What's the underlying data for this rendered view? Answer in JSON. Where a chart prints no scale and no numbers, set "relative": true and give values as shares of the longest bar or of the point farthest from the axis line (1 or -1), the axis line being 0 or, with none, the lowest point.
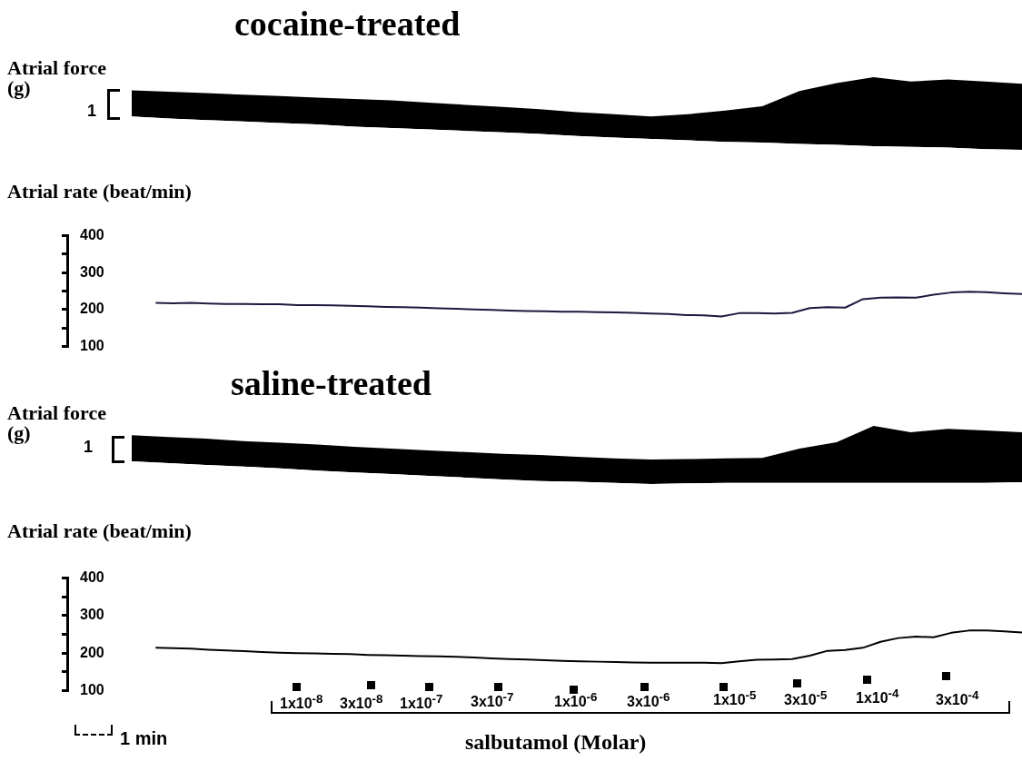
{
  "chart_data": [
    {
      "type": "area",
      "stacked": true,
      "title": "cocaine-treated",
      "ylabel": "Atrial force (g)",
      "relative": true,
      "grid": false,
      "legend": false,
      "annotations": [
        "1"
      ],
      "categories": [
        null,
        null,
        null,
        null,
        null,
        null,
        null,
        null,
        null,
        null,
        null,
        null,
        null,
        null,
        null,
        null,
        null,
        null,
        null,
        null,
        null,
        null,
        null,
        null,
        null
      ],
      "series": [
        {
          "color": "#ffffff",
          "values": [
            0.46,
            0.43,
            0.41,
            0.39,
            0.37,
            0.35,
            0.32,
            0.3,
            0.28,
            0.26,
            0.24,
            0.22,
            0.19,
            0.17,
            0.15,
            0.13,
            0.11,
            0.1,
            0.08,
            0.07,
            0.05,
            0.04,
            0.03,
            0.01,
            0
          ]
        },
        {
          "color": "#000000",
          "values": [
            0.36,
            0.37,
            0.37,
            0.37,
            0.37,
            0.37,
            0.38,
            0.38,
            0.37,
            0.36,
            0.35,
            0.34,
            0.33,
            0.32,
            0.31,
            0.36,
            0.43,
            0.5,
            0.73,
            0.85,
            0.95,
            0.9,
            0.94,
            0.93,
            0.91
          ]
        }
      ]
    },
    {
      "type": "line",
      "ylabel": "Atrial rate (beat/min)",
      "grid": false,
      "legend": false,
      "marker": "none",
      "tick_labels": "y",
      "categories": [
        null,
        null,
        null,
        null,
        null,
        null,
        null,
        null,
        null,
        null,
        null,
        null,
        null,
        null,
        null,
        null,
        null,
        null,
        null,
        null,
        null,
        null,
        null,
        null,
        null,
        null,
        null,
        null,
        null,
        null,
        null,
        null,
        null,
        null,
        null,
        null,
        null,
        null,
        null,
        null,
        null,
        null,
        null,
        null,
        null,
        null,
        null,
        null,
        null,
        null,
        null,
        null,
        null,
        null,
        null
      ],
      "ylim": [
        100,
        400
      ],
      "yticks": [
        100,
        {
          "value": 150,
          "label": null
        },
        200,
        {
          "value": 250,
          "label": null
        },
        300,
        {
          "value": 350,
          "label": null
        },
        400
      ],
      "series": [
        {
          "color": "#1a1a40",
          "values": [
            null,
            null,
            null,
            null,
            null,
            218,
            217,
            218,
            216,
            215,
            215,
            214,
            214,
            212,
            212,
            211,
            210,
            209,
            207,
            206,
            205,
            203,
            202,
            200,
            199,
            197,
            196,
            195,
            194,
            194,
            193,
            192,
            191,
            189,
            188,
            185,
            184,
            181,
            190,
            190,
            189,
            191,
            204,
            206,
            205,
            228,
            232,
            233,
            232,
            240,
            246,
            248,
            247,
            244,
            242
          ]
        }
      ]
    },
    {
      "type": "area",
      "stacked": true,
      "title": "saline-treated",
      "ylabel": "Atrial force (g)",
      "relative": true,
      "grid": false,
      "legend": false,
      "annotations": [
        "1"
      ],
      "categories": [
        null,
        null,
        null,
        null,
        null,
        null,
        null,
        null,
        null,
        null,
        null,
        null,
        null,
        null,
        null,
        null,
        null,
        null,
        null,
        null,
        null,
        null,
        null,
        null,
        null
      ],
      "series": [
        {
          "color": "#ffffff",
          "values": [
            0.39,
            0.36,
            0.33,
            0.3,
            0.27,
            0.23,
            0.2,
            0.17,
            0.14,
            0.11,
            0.08,
            0.05,
            0.04,
            0.02,
            0,
            0.01,
            0.02,
            0.02,
            0.02,
            0.02,
            0.02,
            0.02,
            0.02,
            0.02,
            0.03
          ]
        },
        {
          "color": "#000000",
          "values": [
            0.45,
            0.45,
            0.45,
            0.44,
            0.44,
            0.45,
            0.44,
            0.44,
            0.44,
            0.44,
            0.44,
            0.45,
            0.43,
            0.42,
            0.42,
            0.42,
            0.42,
            0.43,
            0.59,
            0.7,
            0.98,
            0.87,
            0.93,
            0.9,
            0.86
          ]
        }
      ]
    },
    {
      "type": "line",
      "ylabel": "Atrial rate (beat/min)",
      "xlabel": "salbutamol (Molar)",
      "grid": false,
      "legend": false,
      "marker": "none",
      "tick_labels": "y",
      "annotations": [
        "1x10$^{-8}$",
        "3x10$^{-8}$",
        "1x10$^{-7}$",
        "3x10$^{-7}$",
        "1x10$^{-6}$",
        "3x10$^{-6}$",
        "1x10$^{-5}$",
        "3x10$^{-5}$",
        "1x10$^{-4}$",
        "3x10$^{-4}$",
        "1 min"
      ],
      "categories": [
        null,
        null,
        null,
        null,
        null,
        null,
        null,
        null,
        null,
        null,
        null,
        null,
        null,
        null,
        null,
        null,
        null,
        null,
        null,
        null,
        null,
        null,
        null,
        null,
        null,
        null,
        null,
        null,
        null,
        null,
        null,
        null,
        null,
        null,
        null,
        null,
        null,
        null,
        null,
        null,
        null,
        null,
        null,
        null,
        null,
        null,
        null,
        null,
        null,
        null,
        null,
        null,
        null,
        null,
        null
      ],
      "ylim": [
        100,
        400
      ],
      "yticks": [
        100,
        {
          "value": 150,
          "label": null
        },
        200,
        {
          "value": 250,
          "label": null
        },
        300,
        {
          "value": 350,
          "label": null
        },
        400
      ],
      "series": [
        {
          "color": "#000000",
          "values": [
            null,
            null,
            null,
            null,
            null,
            214,
            213,
            212,
            209,
            207,
            205,
            203,
            201,
            200,
            199,
            198,
            197,
            195,
            194,
            193,
            192,
            191,
            190,
            188,
            186,
            184,
            183,
            181,
            179,
            178,
            177,
            176,
            175,
            174,
            174,
            174,
            174,
            173,
            178,
            182,
            183,
            184,
            193,
            206,
            208,
            214,
            230,
            240,
            244,
            242,
            254,
            260,
            260,
            258,
            255
          ]
        }
      ]
    }
  ]
}
